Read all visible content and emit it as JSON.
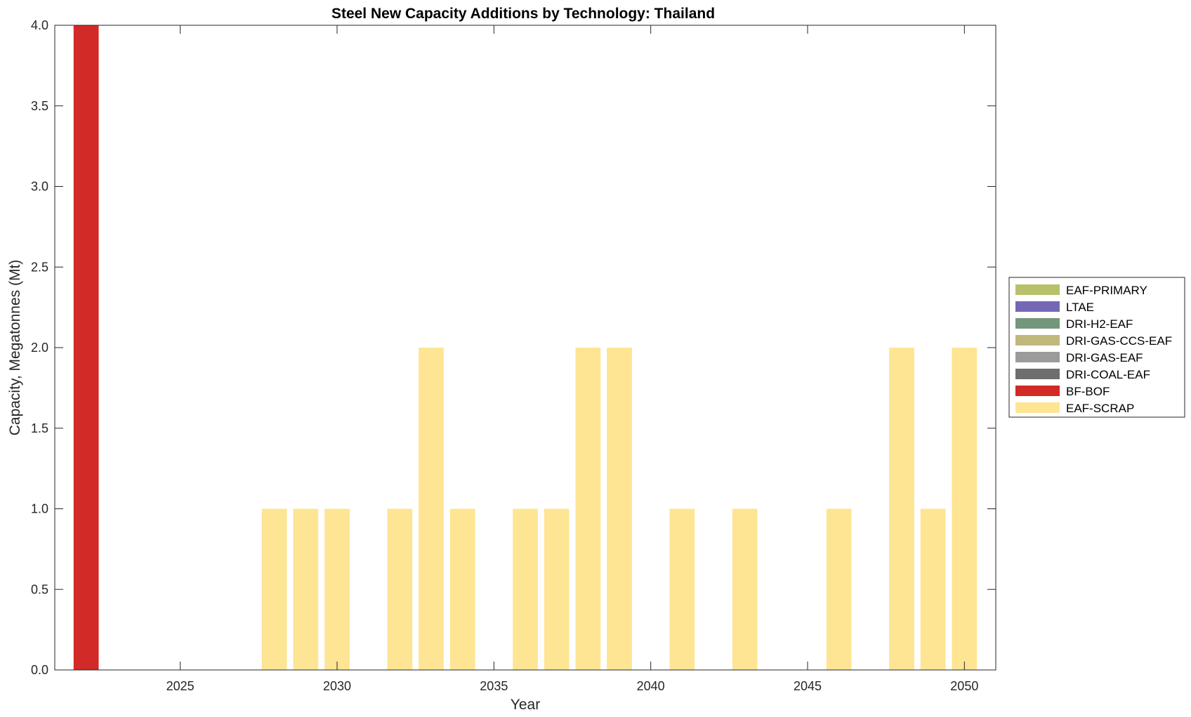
{
  "chart_data": {
    "type": "bar",
    "stacked": true,
    "title": "Steel New Capacity Additions by Technology: Thailand",
    "xlabel": "Year",
    "ylabel": "Capacity, Megatonnes (Mt)",
    "xlim": [
      2021,
      2051
    ],
    "ylim": [
      0,
      4
    ],
    "xticks": [
      2025,
      2030,
      2035,
      2040,
      2045,
      2050
    ],
    "yticks": [
      0.0,
      0.5,
      1.0,
      1.5,
      2.0,
      2.5,
      3.0,
      3.5,
      4.0
    ],
    "ytick_labels": [
      "0.0",
      "0.5",
      "1.0",
      "1.5",
      "2.0",
      "2.5",
      "3.0",
      "3.5",
      "4.0"
    ],
    "grid": false,
    "legend_position": "outside-right",
    "x": [
      2022,
      2023,
      2024,
      2025,
      2026,
      2027,
      2028,
      2029,
      2030,
      2031,
      2032,
      2033,
      2034,
      2035,
      2036,
      2037,
      2038,
      2039,
      2040,
      2041,
      2042,
      2043,
      2044,
      2045,
      2046,
      2047,
      2048,
      2049,
      2050
    ],
    "series": [
      {
        "name": "EAF-PRIMARY",
        "color": "#b8c16a",
        "values": [
          0,
          0,
          0,
          0,
          0,
          0,
          0,
          0,
          0,
          0,
          0,
          0,
          0,
          0,
          0,
          0,
          0,
          0,
          0,
          0,
          0,
          0,
          0,
          0,
          0,
          0,
          0,
          0,
          0
        ]
      },
      {
        "name": "LTAE",
        "color": "#7468b5",
        "values": [
          0,
          0,
          0,
          0,
          0,
          0,
          0,
          0,
          0,
          0,
          0,
          0,
          0,
          0,
          0,
          0,
          0,
          0,
          0,
          0,
          0,
          0,
          0,
          0,
          0,
          0,
          0,
          0,
          0
        ]
      },
      {
        "name": "DRI-H2-EAF",
        "color": "#73977a",
        "values": [
          0,
          0,
          0,
          0,
          0,
          0,
          0,
          0,
          0,
          0,
          0,
          0,
          0,
          0,
          0,
          0,
          0,
          0,
          0,
          0,
          0,
          0,
          0,
          0,
          0,
          0,
          0,
          0,
          0
        ]
      },
      {
        "name": "DRI-GAS-CCS-EAF",
        "color": "#c0b87c",
        "values": [
          0,
          0,
          0,
          0,
          0,
          0,
          0,
          0,
          0,
          0,
          0,
          0,
          0,
          0,
          0,
          0,
          0,
          0,
          0,
          0,
          0,
          0,
          0,
          0,
          0,
          0,
          0,
          0,
          0
        ]
      },
      {
        "name": "DRI-GAS-EAF",
        "color": "#9b9b9b",
        "values": [
          0,
          0,
          0,
          0,
          0,
          0,
          0,
          0,
          0,
          0,
          0,
          0,
          0,
          0,
          0,
          0,
          0,
          0,
          0,
          0,
          0,
          0,
          0,
          0,
          0,
          0,
          0,
          0,
          0
        ]
      },
      {
        "name": "DRI-COAL-EAF",
        "color": "#6e6e6e",
        "values": [
          0,
          0,
          0,
          0,
          0,
          0,
          0,
          0,
          0,
          0,
          0,
          0,
          0,
          0,
          0,
          0,
          0,
          0,
          0,
          0,
          0,
          0,
          0,
          0,
          0,
          0,
          0,
          0,
          0
        ]
      },
      {
        "name": "BF-BOF",
        "color": "#d22a26",
        "values": [
          4,
          0,
          0,
          0,
          0,
          0,
          0,
          0,
          0,
          0,
          0,
          0,
          0,
          0,
          0,
          0,
          0,
          0,
          0,
          0,
          0,
          0,
          0,
          0,
          0,
          0,
          0,
          0,
          0
        ]
      },
      {
        "name": "EAF-SCRAP",
        "color": "#fee593",
        "values": [
          0,
          0,
          0,
          0,
          0,
          0,
          1,
          1,
          1,
          0,
          1,
          2,
          1,
          0,
          1,
          1,
          2,
          2,
          0,
          1,
          0,
          1,
          0,
          0,
          1,
          0,
          2,
          1,
          2
        ]
      }
    ]
  }
}
